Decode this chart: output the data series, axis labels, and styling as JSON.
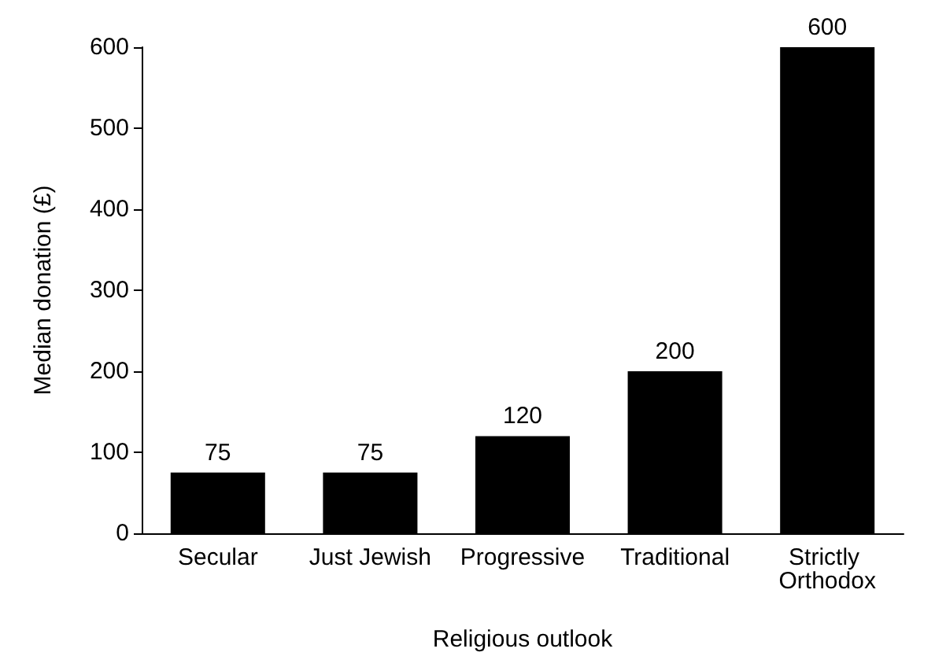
{
  "chart_data": {
    "type": "bar",
    "xlabel": "Religious outlook",
    "ylabel": "Median donation (£)",
    "categories": [
      "Secular",
      "Just Jewish",
      "Progressive",
      "Traditional",
      "Strictly Orthodox"
    ],
    "values": [
      75,
      75,
      120,
      200,
      600
    ],
    "color": "#000000",
    "ylim": [
      0,
      600
    ],
    "yticks": [
      0,
      100,
      200,
      300,
      400,
      500,
      600
    ],
    "grid": false,
    "data_labels": true
  }
}
